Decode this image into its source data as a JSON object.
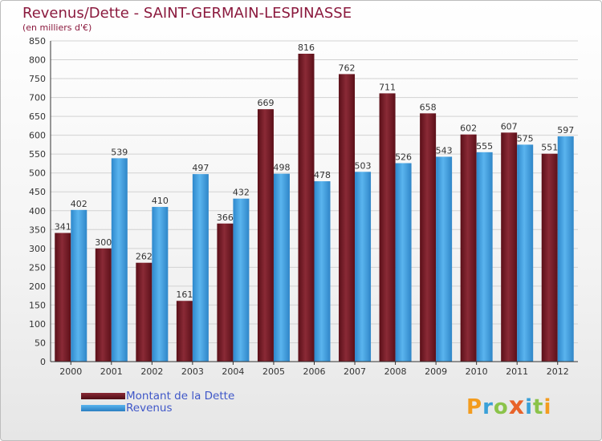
{
  "title": "Revenus/Dette - SAINT-GERMAIN-LESPINASSE",
  "subtitle": "(en milliers d'€)",
  "logo": {
    "text": "Proxiti",
    "letters": [
      {
        "ch": "P",
        "color": "#f39c1f"
      },
      {
        "ch": "r",
        "color": "#3aa0d8"
      },
      {
        "ch": "o",
        "color": "#8bc34a"
      },
      {
        "ch": "x",
        "color": "#e8632a"
      },
      {
        "ch": "i",
        "color": "#3aa0d8"
      },
      {
        "ch": "t",
        "color": "#8bc34a"
      },
      {
        "ch": "i",
        "color": "#f39c1f"
      }
    ]
  },
  "colors": {
    "dette": "#7a1f2a",
    "revenus": "#3f9ee0",
    "title": "#8b1a3e",
    "legend_text": "#3f57c8"
  },
  "chart_data": {
    "type": "bar",
    "title": "Revenus/Dette - SAINT-GERMAIN-LESPINASSE",
    "subtitle": "(en milliers d'€)",
    "categories": [
      "2000",
      "2001",
      "2002",
      "2003",
      "2004",
      "2005",
      "2006",
      "2007",
      "2008",
      "2009",
      "2010",
      "2011",
      "2012"
    ],
    "series": [
      {
        "name": "Montant de la Dette",
        "values": [
          341,
          300,
          262,
          161,
          366,
          669,
          816,
          762,
          711,
          658,
          602,
          607,
          551
        ]
      },
      {
        "name": "Revenus",
        "values": [
          402,
          539,
          410,
          497,
          432,
          498,
          478,
          503,
          526,
          543,
          555,
          575,
          597
        ]
      }
    ],
    "ylim": [
      0,
      850
    ],
    "yticks": [
      0,
      50,
      100,
      150,
      200,
      250,
      300,
      350,
      400,
      450,
      500,
      550,
      600,
      650,
      700,
      750,
      800,
      850
    ],
    "grid": true,
    "legend_position": "bottom-left"
  }
}
